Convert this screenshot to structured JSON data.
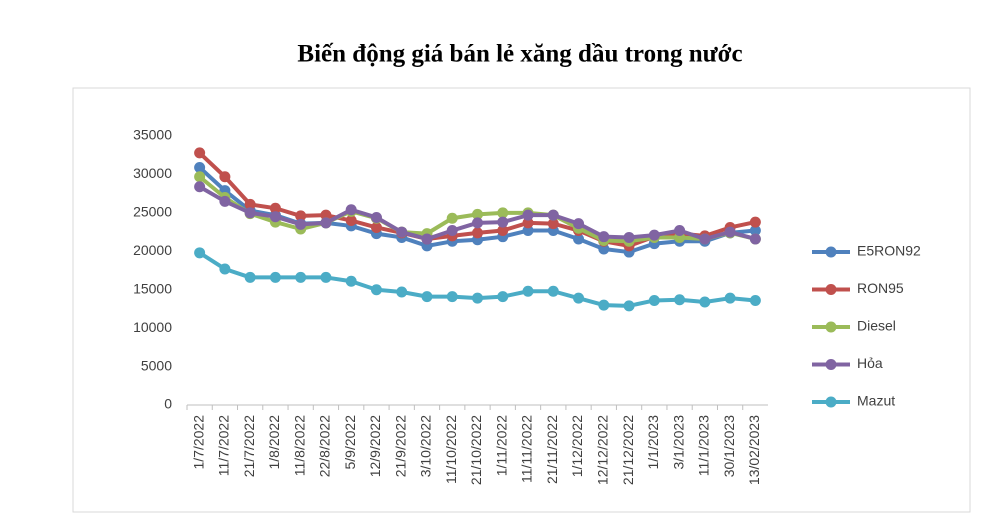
{
  "chart_data": {
    "type": "line",
    "title": "Biến động giá bán lẻ xăng dầu trong nước",
    "categories": [
      "1/7/2022",
      "11/7/2022",
      "21/7/2022",
      "1/8/2022",
      "11/8/2022",
      "22/8/2022",
      "5/9/2022",
      "12/9/2022",
      "21/9/2022",
      "3/10/2022",
      "11/10/2022",
      "21/10/2022",
      "1/11/2022",
      "11/11/2022",
      "21/11/2022",
      "1/12/2022",
      "12/12/2022",
      "21/12/2022",
      "1/1/2023",
      "3/1/2023",
      "11/1/2023",
      "30/1/2023",
      "13/02/2023"
    ],
    "series": [
      {
        "name": "E5RON92",
        "color": "#4f81bd",
        "values": [
          30900,
          27900,
          25300,
          24700,
          23600,
          23700,
          23300,
          22300,
          21800,
          20700,
          21300,
          21500,
          21900,
          22700,
          22700,
          21600,
          20300,
          19900,
          21000,
          21300,
          21300,
          22400,
          22700
        ]
      },
      {
        "name": "RON95",
        "color": "#c0504d",
        "values": [
          32800,
          29700,
          26100,
          25600,
          24600,
          24700,
          24000,
          23100,
          22400,
          21600,
          22000,
          22400,
          22700,
          23700,
          23600,
          22700,
          21300,
          20700,
          21900,
          22300,
          22000,
          23100,
          23800
        ]
      },
      {
        "name": "Diesel",
        "color": "#9bbb59",
        "values": [
          29700,
          27000,
          24900,
          23800,
          22900,
          23700,
          25200,
          24300,
          22500,
          22300,
          24300,
          24800,
          25000,
          25000,
          24700,
          23000,
          21400,
          21300,
          21800,
          21800,
          21600,
          22400,
          21600
        ]
      },
      {
        "name": "Hỏa",
        "color": "#8064a2",
        "values": [
          28400,
          26500,
          25000,
          24500,
          23500,
          23700,
          25400,
          24400,
          22500,
          21600,
          22700,
          23700,
          23800,
          24700,
          24700,
          23600,
          21900,
          21800,
          22100,
          22700,
          21600,
          22500,
          21600
        ]
      },
      {
        "name": "Mazut",
        "color": "#4bacc6",
        "values": [
          19800,
          17700,
          16600,
          16600,
          16600,
          16600,
          16100,
          15000,
          14700,
          14100,
          14100,
          13900,
          14100,
          14800,
          14800,
          13900,
          13000,
          12900,
          13600,
          13700,
          13400,
          13900,
          13600
        ]
      }
    ],
    "ylim": [
      0,
      35000
    ],
    "yticks": [
      0,
      5000,
      10000,
      15000,
      20000,
      25000,
      30000,
      35000
    ],
    "grid": false,
    "legend": "right"
  }
}
